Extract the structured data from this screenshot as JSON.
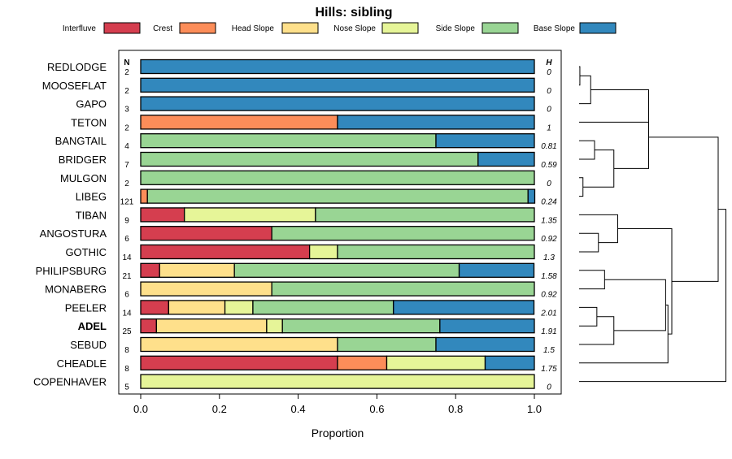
{
  "chart_data": {
    "type": "bar",
    "orientation": "horizontal",
    "stacked": true,
    "title": "Hills: sibling",
    "xlabel": "Proportion",
    "xlim": [
      0,
      1
    ],
    "x_ticks": [
      "0.0",
      "0.2",
      "0.4",
      "0.6",
      "0.8",
      "1.0"
    ],
    "x_tick_values": [
      0,
      0.2,
      0.4,
      0.6,
      0.8,
      1.0
    ],
    "n_header": "N",
    "h_header": "H",
    "highlighted_category": "ADEL",
    "legend_position": "top",
    "series": [
      {
        "name": "Interfluve",
        "color": "#d53e4f"
      },
      {
        "name": "Crest",
        "color": "#fc8d59"
      },
      {
        "name": "Head Slope",
        "color": "#fee08b"
      },
      {
        "name": "Nose Slope",
        "color": "#e6f598"
      },
      {
        "name": "Side Slope",
        "color": "#99d594"
      },
      {
        "name": "Base Slope",
        "color": "#3288bd"
      }
    ],
    "categories": [
      "REDLODGE",
      "MOOSEFLAT",
      "GAPO",
      "TETON",
      "BANGTAIL",
      "BRIDGER",
      "MULGON",
      "LIBEG",
      "TIBAN",
      "ANGOSTURA",
      "GOTHIC",
      "PHILIPSBURG",
      "MONABERG",
      "PEELER",
      "ADEL",
      "SEBUD",
      "CHEADLE",
      "COPENHAVER"
    ],
    "n_values": [
      "2",
      "2",
      "3",
      "2",
      "4",
      "7",
      "2",
      "121",
      "9",
      "6",
      "14",
      "21",
      "6",
      "14",
      "25",
      "8",
      "8",
      "5"
    ],
    "h_values": [
      "0",
      "0",
      "0",
      "1",
      "0.81",
      "0.59",
      "0",
      "0.24",
      "1.35",
      "0.92",
      "1.3",
      "1.58",
      "0.92",
      "2.01",
      "1.91",
      "1.5",
      "1.75",
      "0"
    ],
    "proportions": [
      [
        0,
        0,
        0,
        0,
        0,
        1
      ],
      [
        0,
        0,
        0,
        0,
        0,
        1
      ],
      [
        0,
        0,
        0,
        0,
        0,
        1
      ],
      [
        0,
        0.5,
        0,
        0,
        0,
        0.5
      ],
      [
        0,
        0,
        0,
        0,
        0.75,
        0.25
      ],
      [
        0,
        0,
        0,
        0,
        0.857,
        0.143
      ],
      [
        0,
        0,
        0,
        0,
        1,
        0
      ],
      [
        0,
        0.017,
        0,
        0,
        0.967,
        0.017
      ],
      [
        0.111,
        0,
        0,
        0.333,
        0.556,
        0
      ],
      [
        0.333,
        0,
        0,
        0,
        0.667,
        0
      ],
      [
        0.429,
        0,
        0,
        0.071,
        0.5,
        0
      ],
      [
        0.048,
        0,
        0.19,
        0,
        0.571,
        0.19
      ],
      [
        0,
        0,
        0.333,
        0,
        0.667,
        0
      ],
      [
        0.071,
        0,
        0.143,
        0.071,
        0.357,
        0.357
      ],
      [
        0.04,
        0,
        0.28,
        0.04,
        0.4,
        0.24
      ],
      [
        0,
        0,
        0.5,
        0,
        0.25,
        0.25
      ],
      [
        0.5,
        0.125,
        0,
        0.25,
        0,
        0.125
      ],
      [
        0,
        0,
        0,
        1,
        0,
        0
      ]
    ],
    "dendrogram_merges": [
      [
        0,
        1
      ],
      [
        2,
        18
      ],
      [
        3,
        19
      ],
      [
        4,
        5
      ],
      [
        6,
        7
      ],
      [
        21,
        22
      ],
      [
        20,
        23
      ],
      [
        9,
        10
      ],
      [
        8,
        25
      ],
      [
        11,
        12
      ],
      [
        13,
        14
      ],
      [
        28,
        15
      ],
      [
        27,
        29
      ],
      [
        16,
        30
      ],
      [
        26,
        31
      ],
      [
        24,
        32
      ],
      [
        33,
        17
      ]
    ],
    "dendrogram_heights": [
      0.01,
      0.15,
      0.9,
      0.2,
      0.05,
      0.45,
      0.9,
      0.25,
      0.5,
      0.33,
      0.23,
      0.45,
      1.12,
      1.15,
      1.2,
      1.8,
      1.9
    ]
  }
}
